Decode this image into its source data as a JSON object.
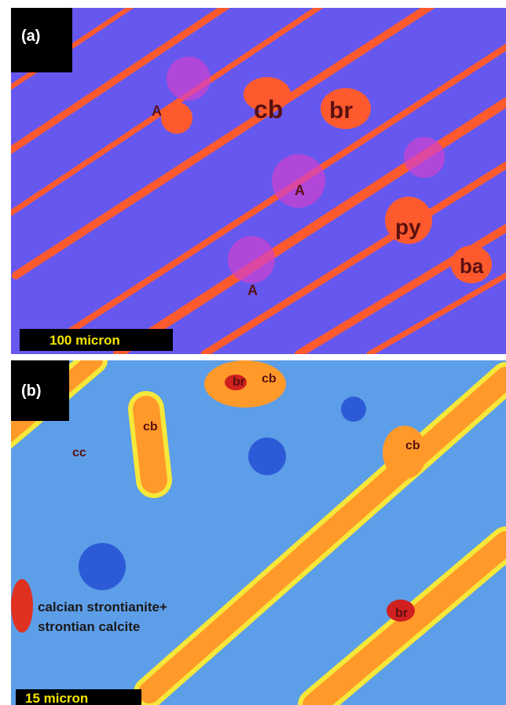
{
  "panels": [
    {
      "label": "(a)",
      "annotations": [
        "A",
        "cb",
        "br",
        "A",
        "py",
        "ba",
        "A"
      ],
      "scale_bar": "100 micron"
    },
    {
      "label": "(b)",
      "annotations": [
        "br",
        "cb",
        "cb",
        "cc",
        "cb",
        "calcian strontianite+",
        "strontian calcite",
        "br"
      ],
      "scale_bar": "15 micron"
    }
  ]
}
